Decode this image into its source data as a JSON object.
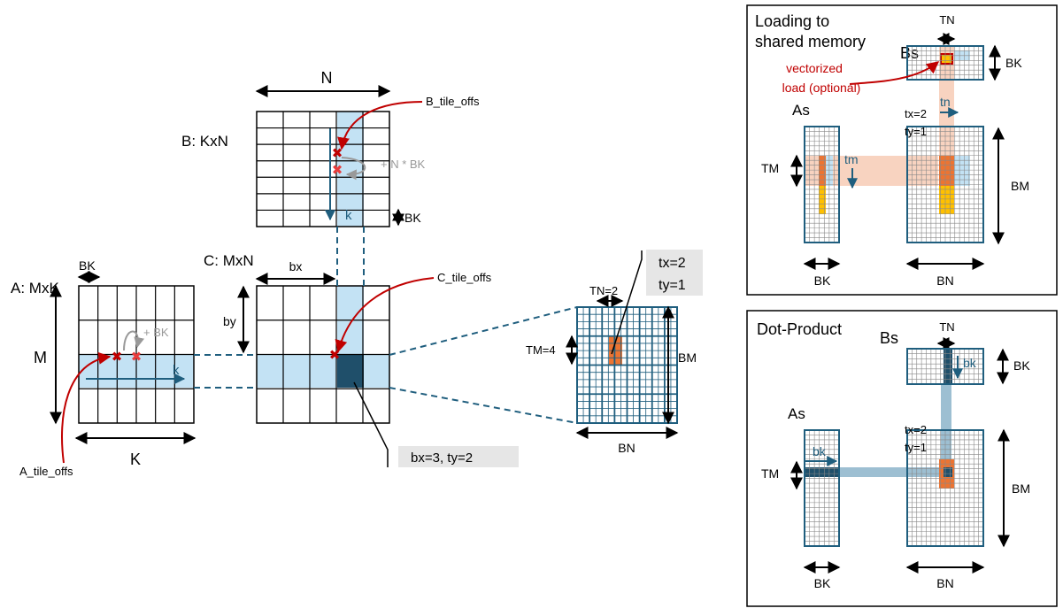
{
  "matrices": {
    "a_label": "A: MxK",
    "b_label": "B: KxN",
    "c_label": "C: MxN",
    "dim_n": "N",
    "dim_m": "M",
    "dim_k": "K",
    "bk": "BK",
    "bx": "bx",
    "by": "by",
    "k_arrow": "k",
    "plus_bk": "+ BK",
    "plus_n_bk": "+ N * BK",
    "a_tile_offs": "A_tile_offs",
    "b_tile_offs": "B_tile_offs",
    "c_tile_offs": "C_tile_offs",
    "block_callout": "bx=3, ty=2"
  },
  "block_tile": {
    "tn": "TN=2",
    "tm": "TM=4",
    "bm": "BM",
    "bn": "BN",
    "thread_tx": "tx=2",
    "thread_ty": "ty=1"
  },
  "panel_load": {
    "title_line1": "Loading to",
    "title_line2": "shared memory",
    "bs": "Bs",
    "as": "As",
    "tn": "TN",
    "bk_right": "BK",
    "vectorized_line1": "vectorized",
    "vectorized_line2": "load (optional)",
    "tn_arrow": "tn",
    "tm_arrow": "tm",
    "tx": "tx=2",
    "ty": "ty=1",
    "tm": "TM",
    "bm": "BM",
    "bk_bottom": "BK",
    "bn_bottom": "BN"
  },
  "panel_dot": {
    "title": "Dot-Product",
    "bs": "Bs",
    "as": "As",
    "tn": "TN",
    "bk_right": "BK",
    "bk_arrow_b": "bk",
    "bk_arrow_a": "bk",
    "tx": "tx=2",
    "ty": "ty=1",
    "tm": "TM",
    "bm": "BM",
    "bk_bottom": "BK",
    "bn_bottom": "BN"
  },
  "colors": {
    "grid": "#000000",
    "tile_blue": "#c3e2f4",
    "dark_navy": "#1f4f6a",
    "teal": "#1f5e7e",
    "red": "#c00000",
    "orange": "#ec7432",
    "gold": "#ffc000",
    "peach": "#f8d3c0",
    "gray": "#999999"
  }
}
